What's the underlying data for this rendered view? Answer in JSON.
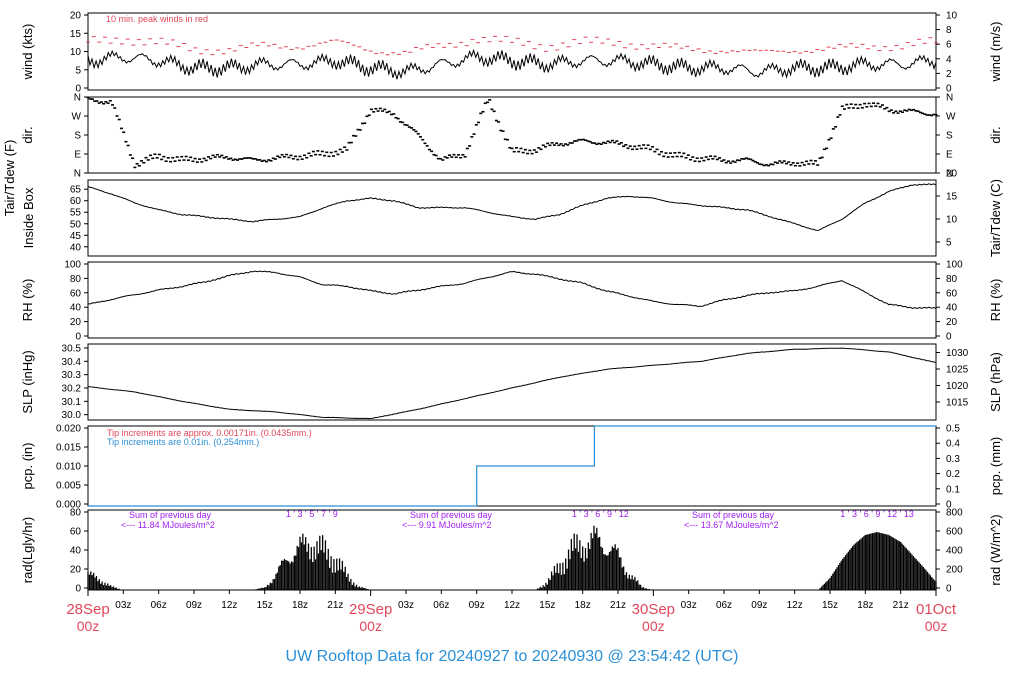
{
  "footer": {
    "title": "UW Rooftop Data for 20240927  to  20240930 @ 23:54:42  (UTC)"
  },
  "colors": {
    "accent_red": "#e0485a",
    "accent_blue": "#2b8fd6",
    "accent_purple": "#a020f0",
    "line": "#000000"
  },
  "chart_data": {
    "type": "line",
    "x_axis": {
      "range_hours": [
        0,
        72
      ],
      "tick_labels": [
        "03z",
        "06z",
        "09z",
        "12z",
        "15z",
        "18z",
        "21z",
        "03z",
        "06z",
        "09z",
        "12z",
        "15z",
        "18z",
        "21z",
        "03z",
        "06z",
        "09z",
        "12z",
        "15z",
        "18z",
        "21z"
      ],
      "date_labels": [
        {
          "line1": "28Sep",
          "line2": "00z",
          "hour": 0
        },
        {
          "line1": "29Sep",
          "line2": "00z",
          "hour": 24
        },
        {
          "line1": "30Sep",
          "line2": "00z",
          "hour": 48
        },
        {
          "line1": "01Oct",
          "line2": "00z",
          "hour": 72
        }
      ]
    },
    "panels": [
      {
        "id": "wind",
        "ylabel_left": "wind (kts)",
        "ylabel_right": "wind (m/s)",
        "left_ticks": [
          "0",
          "5",
          "10",
          "15",
          "20"
        ],
        "right_ticks": [
          "0",
          "2",
          "4",
          "6",
          "8",
          "10"
        ],
        "ylim": [
          0,
          21
        ],
        "annotation": "10 min. peak winds in red",
        "series": [
          {
            "name": "wind",
            "hours": [
              0,
              3,
              6,
              9,
              12,
              15,
              18,
              21,
              24,
              27,
              30,
              33,
              36,
              39,
              42,
              45,
              48,
              51,
              54,
              57,
              60,
              63,
              66,
              69,
              72
            ],
            "values": [
              8,
              9,
              8,
              6,
              6,
              7,
              7,
              8,
              6,
              5,
              7,
              9,
              8,
              7,
              8,
              8,
              7,
              6,
              6,
              5,
              6,
              6,
              7,
              7,
              8
            ]
          },
          {
            "name": "peak",
            "hours": [
              0,
              3,
              6,
              9,
              12,
              15,
              18,
              21,
              24,
              27,
              30,
              33,
              36,
              39,
              42,
              45,
              48,
              51,
              54,
              57,
              60,
              63,
              66,
              69,
              72
            ],
            "values": [
              13,
              14,
              13,
              11,
              11,
              12,
              12,
              13,
              11,
              10,
              12,
              14,
              13,
              12,
              13,
              13,
              12,
              11,
              11,
              10,
              11,
              11,
              12,
              12,
              13
            ]
          }
        ]
      },
      {
        "id": "dir",
        "ylabel_left": "dir.",
        "ylabel_right": "dir.",
        "left_ticks": [
          "N",
          "E",
          "S",
          "W",
          "N"
        ],
        "right_ticks": [
          "N",
          "E",
          "S",
          "W",
          "N"
        ],
        "ylim": [
          0,
          360
        ],
        "series": [
          {
            "name": "direction",
            "hours": [
              0,
              2,
              4,
              6,
              8,
              10,
              12,
              14,
              16,
              18,
              20,
              22,
              24,
              26,
              28,
              30,
              32,
              34,
              36,
              38,
              40,
              42,
              44,
              46,
              48,
              50,
              52,
              54,
              56,
              58,
              60,
              62,
              64,
              66,
              68,
              70,
              72
            ],
            "values": [
              350,
              335,
              40,
              80,
              60,
              70,
              75,
              60,
              70,
              80,
              90,
              110,
              300,
              280,
              180,
              60,
              90,
              350,
              100,
              110,
              140,
              150,
              145,
              130,
              110,
              80,
              70,
              60,
              60,
              40,
              50,
              40,
              300,
              330,
              300,
              290,
              280
            ]
          }
        ]
      },
      {
        "id": "temp",
        "ylabel_left": "Tair/Tdew (F)",
        "ylabel_left2": "Inside Box",
        "ylabel_right": "Tair/Tdew (C)",
        "left_ticks": [
          "40",
          "45",
          "50",
          "55",
          "60",
          "65"
        ],
        "right_ticks": [
          "5",
          "10",
          "15",
          "20"
        ],
        "ylim": [
          36,
          69
        ],
        "series": [
          {
            "name": "inside_box",
            "hours": [
              0,
              2,
              4,
              6,
              8,
              10,
              12,
              14,
              16,
              18,
              20,
              22,
              24,
              26,
              28,
              30,
              32,
              34,
              36,
              38,
              40,
              42,
              44,
              46,
              48,
              50,
              52,
              54,
              56,
              58,
              60,
              62,
              64,
              66,
              68,
              70,
              72
            ],
            "values": [
              66,
              63,
              59,
              56,
              54,
              53,
              52,
              51,
              52,
              53,
              57,
              60,
              61,
              60,
              57,
              57,
              57,
              55,
              53,
              52,
              54,
              58,
              61,
              62,
              61,
              59,
              58,
              57,
              56,
              53,
              50,
              47,
              52,
              59,
              64,
              67,
              67
            ]
          }
        ]
      },
      {
        "id": "rh",
        "ylabel_left": "RH (%)",
        "ylabel_right": "RH (%)",
        "left_ticks": [
          "0",
          "20",
          "40",
          "60",
          "80",
          "100"
        ],
        "right_ticks": [
          "0",
          "20",
          "40",
          "60",
          "80",
          "100"
        ],
        "ylim": [
          0,
          100
        ],
        "series": [
          {
            "name": "rh",
            "hours": [
              0,
              2,
              4,
              6,
              8,
              10,
              12,
              14,
              16,
              18,
              20,
              22,
              24,
              26,
              28,
              30,
              32,
              34,
              36,
              38,
              40,
              42,
              44,
              46,
              48,
              50,
              52,
              54,
              56,
              58,
              60,
              62,
              64,
              66,
              68,
              70,
              72
            ],
            "values": [
              44,
              51,
              57,
              63,
              68,
              74,
              82,
              88,
              86,
              80,
              70,
              68,
              62,
              58,
              63,
              68,
              72,
              80,
              87,
              84,
              78,
              72,
              62,
              55,
              48,
              44,
              42,
              50,
              56,
              60,
              62,
              68,
              76,
              60,
              44,
              40,
              39
            ]
          }
        ]
      },
      {
        "id": "slp",
        "ylabel_left": "SLP (inHg)",
        "ylabel_right": "SLP (hPa)",
        "left_ticks": [
          "30.0",
          "30.1",
          "30.2",
          "30.3",
          "30.4",
          "30.5"
        ],
        "right_ticks": [
          "1015",
          "1020",
          "1025",
          "1030"
        ],
        "ylim": [
          29.96,
          30.53
        ],
        "series": [
          {
            "name": "slp",
            "hours": [
              0,
              4,
              8,
              12,
              16,
              20,
              24,
              28,
              32,
              36,
              40,
              44,
              48,
              52,
              56,
              60,
              64,
              68,
              72
            ],
            "values": [
              30.21,
              30.17,
              30.1,
              30.04,
              30.02,
              29.98,
              29.97,
              30.04,
              30.12,
              30.2,
              30.28,
              30.34,
              30.37,
              30.4,
              30.46,
              30.49,
              30.5,
              30.47,
              30.39
            ]
          }
        ]
      },
      {
        "id": "pcp",
        "ylabel_left": "pcp. (in)",
        "ylabel_right": "pcp. (mm)",
        "left_ticks": [
          "0.000",
          "0.005",
          "0.010",
          "0.015",
          "0.020"
        ],
        "right_ticks": [
          "0",
          "0.1",
          "0.2",
          "0.3",
          "0.4",
          "0.5"
        ],
        "ylim": [
          0,
          0.02
        ],
        "notes": [
          "Tip increments are approx. 0.00171in. (0.0435mm.)",
          "Tip increments are 0.01in. (0.254mm.)"
        ],
        "series": [
          {
            "name": "precip",
            "hours": [
              0,
              33,
              33,
              43,
              43,
              72
            ],
            "values": [
              0,
              0,
              0.01,
              0.01,
              0.02,
              0.02
            ]
          }
        ]
      },
      {
        "id": "rad",
        "ylabel_left": "rad(Lgly/hr)",
        "ylabel_right": "rad (W/m^2)",
        "left_ticks": [
          "0",
          "20",
          "40",
          "60",
          "80"
        ],
        "right_ticks": [
          "0",
          "200",
          "400",
          "600",
          "800"
        ],
        "ylim": [
          0,
          80
        ],
        "daily_sums": [
          {
            "line1": "Sum of previous day",
            "line2": "<--- 11.84 MJoules/m^2"
          },
          {
            "line1": "Sum of previous day",
            "line2": "<--- 9.91 MJoules/m^2"
          },
          {
            "line1": "Sum of previous day",
            "line2": "<--- 13.67 MJoules/m^2"
          }
        ],
        "uv_labels": [
          {
            "text": "1 ' 3 ' 5 ' 7 ' 9",
            "hour": 19
          },
          {
            "text": "1 ' 3 ' 6 ' 9 '  12",
            "hour": 43.5
          },
          {
            "text": "1 ' 3 ' 6 ' 9 ' 12 ' 13",
            "hour": 67
          }
        ],
        "series": [
          {
            "name": "radiation",
            "hours": [
              0,
              1,
              2,
              3,
              14,
              15,
              16,
              17,
              18,
              19,
              20,
              21,
              22,
              23,
              24,
              38,
              39,
              40,
              41,
              42,
              43,
              44,
              45,
              46,
              47,
              48,
              62,
              63,
              64,
              65,
              66,
              67,
              68,
              69,
              70,
              71,
              72
            ],
            "values": [
              20,
              14,
              4,
              0,
              0,
              3,
              20,
              45,
              55,
              62,
              50,
              40,
              18,
              4,
              0,
              0,
              10,
              30,
              50,
              60,
              66,
              60,
              44,
              20,
              4,
              0,
              0,
              12,
              30,
              45,
              55,
              58,
              55,
              48,
              35,
              22,
              8
            ]
          }
        ]
      }
    ]
  }
}
